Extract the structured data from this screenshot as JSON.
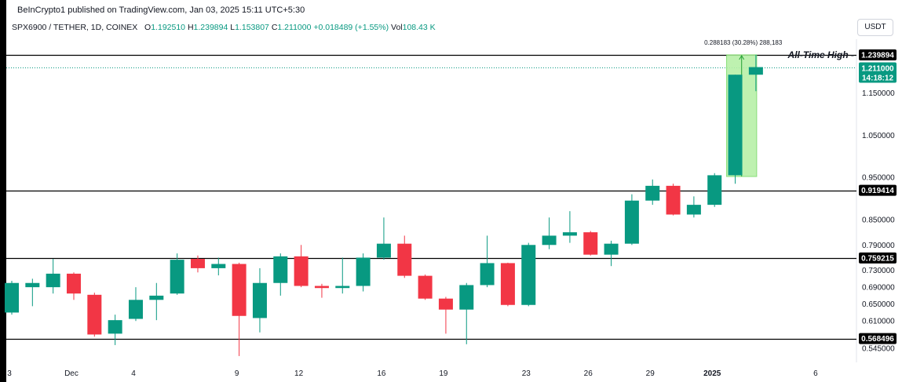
{
  "header": {
    "publisher": "BeInCrypto1 published on TradingView.com, Jan 03, 2025 15:11 UTC+5:30",
    "symbol": "SPX6900 / TETHER, 1D, COINEX",
    "o_label": "O",
    "o_value": "1.192510",
    "h_label": "H",
    "h_value": "1.239894",
    "l_label": "L",
    "l_value": "1.153807",
    "c_label": "C",
    "c_value": "1.211000",
    "change": "+0.018489 (+1.55%)",
    "vol_label": "Vol",
    "vol_value": "108.43 K",
    "currency": "USDT"
  },
  "chart_data": {
    "type": "candlestick",
    "ylim": [
      0.512,
      1.277
    ],
    "y_ticks": [
      "1.150000",
      "1.050000",
      "0.950000",
      "0.850000",
      "0.790000",
      "0.730000",
      "0.690000",
      "0.650000",
      "0.610000",
      "0.545000"
    ],
    "x_ticks": [
      {
        "label": "3",
        "index": 0
      },
      {
        "label": "Dec",
        "index": 3
      },
      {
        "label": "4",
        "index": 6
      },
      {
        "label": "9",
        "index": 11
      },
      {
        "label": "12",
        "index": 14
      },
      {
        "label": "16",
        "index": 18
      },
      {
        "label": "19",
        "index": 21
      },
      {
        "label": "23",
        "index": 25
      },
      {
        "label": "26",
        "index": 28
      },
      {
        "label": "29",
        "index": 31
      },
      {
        "label": "2025",
        "index": 34
      },
      {
        "label": "6",
        "index": 39
      }
    ],
    "candles": [
      {
        "o": 0.63,
        "h": 0.705,
        "l": 0.625,
        "c": 0.7
      },
      {
        "o": 0.69,
        "h": 0.71,
        "l": 0.645,
        "c": 0.7
      },
      {
        "o": 0.69,
        "h": 0.757,
        "l": 0.675,
        "c": 0.722
      },
      {
        "o": 0.722,
        "h": 0.725,
        "l": 0.66,
        "c": 0.675
      },
      {
        "o": 0.672,
        "h": 0.677,
        "l": 0.573,
        "c": 0.578
      },
      {
        "o": 0.58,
        "h": 0.625,
        "l": 0.553,
        "c": 0.612
      },
      {
        "o": 0.615,
        "h": 0.69,
        "l": 0.61,
        "c": 0.66
      },
      {
        "o": 0.66,
        "h": 0.7,
        "l": 0.612,
        "c": 0.67
      },
      {
        "o": 0.675,
        "h": 0.77,
        "l": 0.672,
        "c": 0.755
      },
      {
        "o": 0.757,
        "h": 0.765,
        "l": 0.725,
        "c": 0.735
      },
      {
        "o": 0.735,
        "h": 0.76,
        "l": 0.718,
        "c": 0.745
      },
      {
        "o": 0.745,
        "h": 0.748,
        "l": 0.527,
        "c": 0.622
      },
      {
        "o": 0.617,
        "h": 0.735,
        "l": 0.583,
        "c": 0.7
      },
      {
        "o": 0.7,
        "h": 0.77,
        "l": 0.67,
        "c": 0.763
      },
      {
        "o": 0.763,
        "h": 0.79,
        "l": 0.69,
        "c": 0.693
      },
      {
        "o": 0.693,
        "h": 0.698,
        "l": 0.665,
        "c": 0.688
      },
      {
        "o": 0.688,
        "h": 0.76,
        "l": 0.675,
        "c": 0.693
      },
      {
        "o": 0.693,
        "h": 0.77,
        "l": 0.68,
        "c": 0.76
      },
      {
        "o": 0.76,
        "h": 0.855,
        "l": 0.755,
        "c": 0.793
      },
      {
        "o": 0.793,
        "h": 0.812,
        "l": 0.712,
        "c": 0.717
      },
      {
        "o": 0.717,
        "h": 0.72,
        "l": 0.66,
        "c": 0.663
      },
      {
        "o": 0.663,
        "h": 0.667,
        "l": 0.58,
        "c": 0.637
      },
      {
        "o": 0.637,
        "h": 0.7,
        "l": 0.555,
        "c": 0.695
      },
      {
        "o": 0.695,
        "h": 0.812,
        "l": 0.69,
        "c": 0.747
      },
      {
        "o": 0.747,
        "h": 0.748,
        "l": 0.645,
        "c": 0.648
      },
      {
        "o": 0.648,
        "h": 0.795,
        "l": 0.645,
        "c": 0.79
      },
      {
        "o": 0.79,
        "h": 0.855,
        "l": 0.78,
        "c": 0.812
      },
      {
        "o": 0.812,
        "h": 0.87,
        "l": 0.795,
        "c": 0.82
      },
      {
        "o": 0.82,
        "h": 0.823,
        "l": 0.765,
        "c": 0.767
      },
      {
        "o": 0.767,
        "h": 0.8,
        "l": 0.74,
        "c": 0.793
      },
      {
        "o": 0.793,
        "h": 0.91,
        "l": 0.79,
        "c": 0.895
      },
      {
        "o": 0.895,
        "h": 0.945,
        "l": 0.885,
        "c": 0.93
      },
      {
        "o": 0.93,
        "h": 0.935,
        "l": 0.86,
        "c": 0.862
      },
      {
        "o": 0.862,
        "h": 0.905,
        "l": 0.855,
        "c": 0.885
      },
      {
        "o": 0.885,
        "h": 0.96,
        "l": 0.88,
        "c": 0.955
      },
      {
        "o": 0.955,
        "h": 1.193,
        "l": 0.935,
        "c": 1.193
      },
      {
        "o": 1.193,
        "h": 1.24,
        "l": 1.154,
        "c": 1.211
      }
    ],
    "levels": [
      {
        "value": 1.239894,
        "label": "1.239894"
      },
      {
        "value": 0.919414,
        "label": "0.919414"
      },
      {
        "value": 0.759215,
        "label": "0.759215"
      },
      {
        "value": 0.568496,
        "label": "0.568496"
      }
    ],
    "current_price": {
      "value": 1.211,
      "label": "1.211000",
      "countdown": "14:18:12"
    },
    "annotation": "All-Time High",
    "measure": {
      "label": "0.288183 (30.28%) 288,183",
      "from": 0.952,
      "to": 1.24,
      "from_index": 35,
      "to_index": 36
    },
    "colors": {
      "up": "#089981",
      "down": "#f23645",
      "measure_fill": "#b7f0a8",
      "measure_edge": "#7cdb6a",
      "level": "#000000"
    }
  }
}
